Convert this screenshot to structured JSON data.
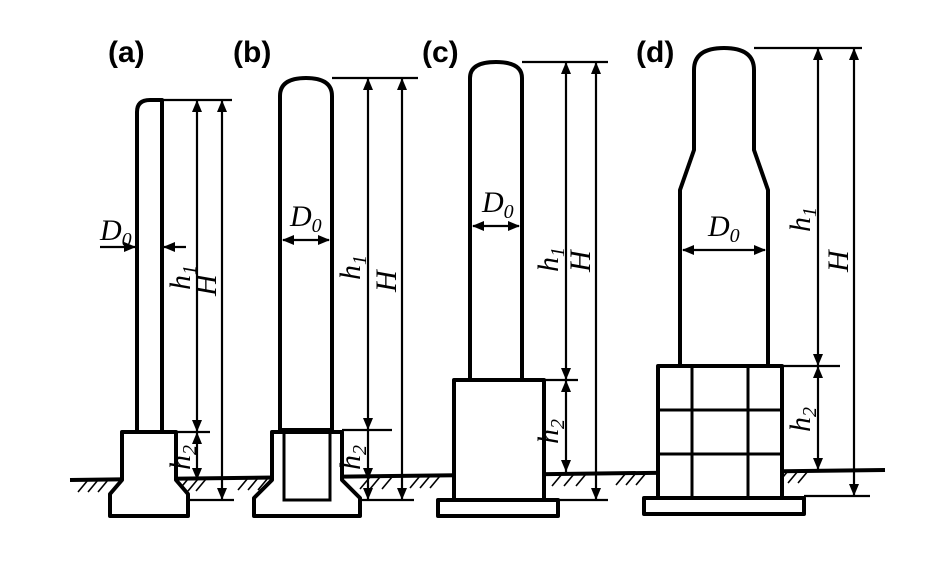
{
  "panels": [
    {
      "label": "(a)",
      "diameter": "D",
      "diameter_sub": "0",
      "h1": "h",
      "h1_sub": "1",
      "h2": "h",
      "h2_sub": "2",
      "total": "H"
    },
    {
      "label": "(b)",
      "diameter": "D",
      "diameter_sub": "0",
      "h1": "h",
      "h1_sub": "1",
      "h2": "h",
      "h2_sub": "2",
      "total": "H"
    },
    {
      "label": "(c)",
      "diameter": "D",
      "diameter_sub": "0",
      "h1": "h",
      "h1_sub": "1",
      "h2": "h",
      "h2_sub": "2",
      "total": "H"
    },
    {
      "label": "(d)",
      "diameter": "D",
      "diameter_sub": "0",
      "h1": "h",
      "h1_sub": "1",
      "h2": "h",
      "h2_sub": "2",
      "total": "H"
    }
  ]
}
